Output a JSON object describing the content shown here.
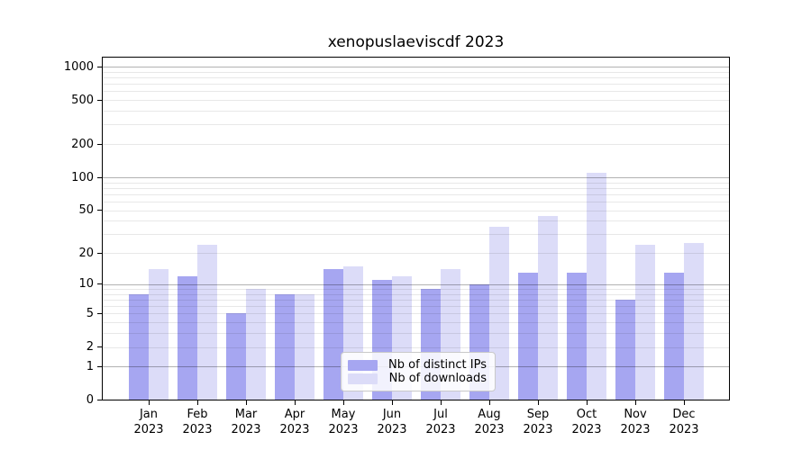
{
  "page": {
    "background": "#ffffff"
  },
  "chart_data": {
    "type": "bar",
    "title": "xenopuslaeviscdf 2023",
    "categories": [
      "Jan 2023",
      "Feb 2023",
      "Mar 2023",
      "Apr 2023",
      "May 2023",
      "Jun 2023",
      "Jul 2023",
      "Aug 2023",
      "Sep 2023",
      "Oct 2023",
      "Nov 2023",
      "Dec 2023"
    ],
    "series": [
      {
        "name": "Nb of distinct IPs",
        "color": "#a6a6f1",
        "values": [
          8,
          12,
          5,
          8,
          14,
          11,
          9,
          10,
          13,
          13,
          7,
          13
        ]
      },
      {
        "name": "Nb of downloads",
        "color": "#dcdcf8",
        "values": [
          14,
          24,
          9,
          8,
          15,
          12,
          14,
          35,
          44,
          109,
          24,
          25
        ]
      }
    ],
    "xlabel": "",
    "ylabel": "",
    "y_ticks": [
      0,
      1,
      2,
      5,
      10,
      20,
      50,
      100,
      200,
      500,
      1000
    ],
    "y_scale": "log10(value+1)",
    "ylim": [
      0,
      1230
    ],
    "grid": true,
    "grid_major_at": [
      1,
      10,
      100,
      1000
    ],
    "legend_position": "inside lower-center",
    "colors": {
      "axis": "#000000",
      "grid_major": "#b3b3b3",
      "grid_minor": "#e8e8e8",
      "background": "#ffffff"
    }
  }
}
